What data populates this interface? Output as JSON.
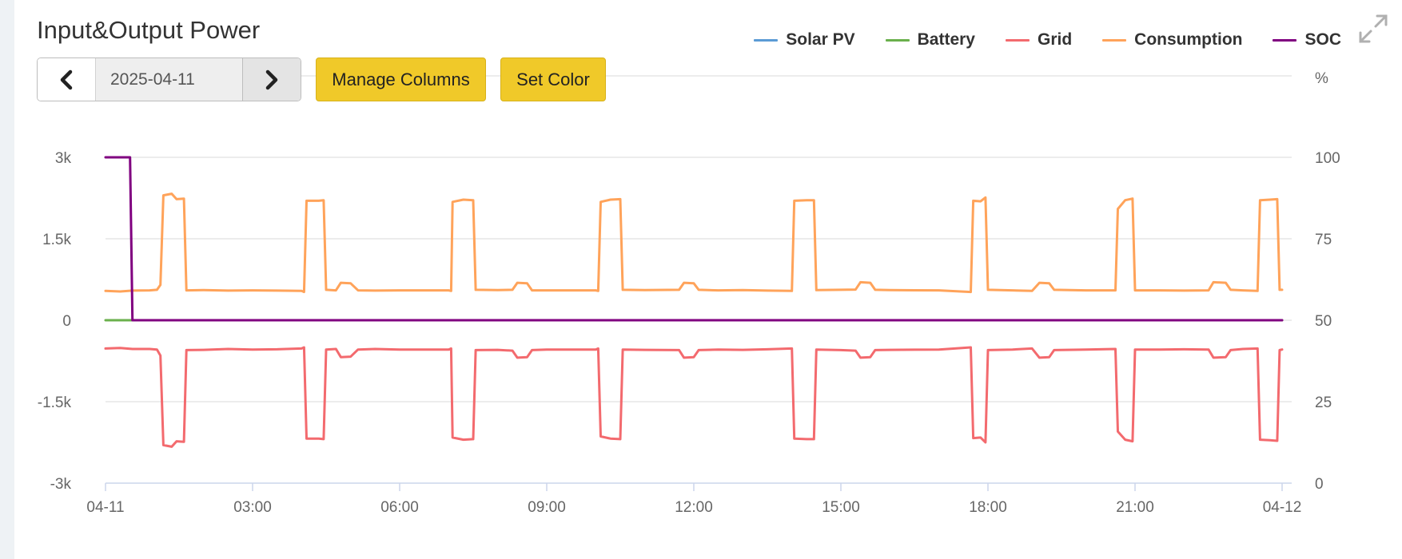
{
  "header": {
    "title": "Input&Output Power"
  },
  "toolbar": {
    "date_value": "2025-04-11",
    "manage_columns_label": "Manage Columns",
    "set_color_label": "Set Color"
  },
  "legend": [
    {
      "label": "Solar PV",
      "color": "#5b9bd5"
    },
    {
      "label": "Battery",
      "color": "#6ab04c"
    },
    {
      "label": "Grid",
      "color": "#f36a6e"
    },
    {
      "label": "Consumption",
      "color": "#ffa35a"
    },
    {
      "label": "SOC",
      "color": "#800080"
    }
  ],
  "chart_data": {
    "type": "line",
    "title": "Input&Output Power",
    "x_tick_labels": [
      "04-11",
      "03:00",
      "06:00",
      "09:00",
      "12:00",
      "15:00",
      "18:00",
      "21:00",
      "04-12"
    ],
    "x_range_hours": [
      0,
      24
    ],
    "y_left": {
      "ticks": [
        "3k",
        "1.5k",
        "0",
        "-1.5k",
        "-3k"
      ],
      "range": [
        -3000,
        3000
      ]
    },
    "y_right": {
      "label": "%",
      "ticks": [
        "100",
        "75",
        "50",
        "25",
        "0"
      ],
      "range": [
        0,
        100
      ]
    },
    "grid": true,
    "legend_position": "top-right",
    "series": [
      {
        "name": "Solar PV",
        "axis": "left",
        "points": []
      },
      {
        "name": "Battery",
        "axis": "left",
        "points": [
          [
            0.0,
            0
          ],
          [
            0.5,
            0
          ],
          [
            24.0,
            0
          ]
        ]
      },
      {
        "name": "Grid",
        "axis": "left",
        "points": [
          [
            0.0,
            -520
          ],
          [
            0.3,
            -510
          ],
          [
            0.55,
            -530
          ],
          [
            0.9,
            -530
          ],
          [
            1.05,
            -540
          ],
          [
            1.12,
            -650
          ],
          [
            1.18,
            -2300
          ],
          [
            1.35,
            -2330
          ],
          [
            1.45,
            -2230
          ],
          [
            1.6,
            -2240
          ],
          [
            1.65,
            -550
          ],
          [
            2.0,
            -545
          ],
          [
            2.5,
            -530
          ],
          [
            3.0,
            -540
          ],
          [
            3.5,
            -535
          ],
          [
            4.0,
            -520
          ],
          [
            4.05,
            -500
          ],
          [
            4.1,
            -2180
          ],
          [
            4.35,
            -2180
          ],
          [
            4.45,
            -2190
          ],
          [
            4.5,
            -540
          ],
          [
            4.7,
            -530
          ],
          [
            4.8,
            -680
          ],
          [
            5.0,
            -670
          ],
          [
            5.15,
            -540
          ],
          [
            5.5,
            -530
          ],
          [
            6.0,
            -540
          ],
          [
            7.0,
            -540
          ],
          [
            7.05,
            -520
          ],
          [
            7.08,
            -2160
          ],
          [
            7.3,
            -2200
          ],
          [
            7.5,
            -2190
          ],
          [
            7.55,
            -550
          ],
          [
            8.0,
            -545
          ],
          [
            8.3,
            -560
          ],
          [
            8.4,
            -690
          ],
          [
            8.6,
            -680
          ],
          [
            8.7,
            -550
          ],
          [
            9.0,
            -540
          ],
          [
            10.0,
            -540
          ],
          [
            10.05,
            -520
          ],
          [
            10.1,
            -2140
          ],
          [
            10.3,
            -2180
          ],
          [
            10.5,
            -2190
          ],
          [
            10.55,
            -540
          ],
          [
            11.0,
            -545
          ],
          [
            11.7,
            -550
          ],
          [
            11.8,
            -690
          ],
          [
            12.0,
            -680
          ],
          [
            12.1,
            -550
          ],
          [
            12.5,
            -540
          ],
          [
            13.0,
            -545
          ],
          [
            13.5,
            -535
          ],
          [
            14.0,
            -520
          ],
          [
            14.05,
            -2180
          ],
          [
            14.3,
            -2190
          ],
          [
            14.45,
            -2190
          ],
          [
            14.5,
            -540
          ],
          [
            15.0,
            -550
          ],
          [
            15.3,
            -560
          ],
          [
            15.4,
            -690
          ],
          [
            15.6,
            -680
          ],
          [
            15.7,
            -550
          ],
          [
            16.0,
            -545
          ],
          [
            17.0,
            -540
          ],
          [
            17.65,
            -500
          ],
          [
            17.7,
            -2170
          ],
          [
            17.85,
            -2160
          ],
          [
            17.95,
            -2250
          ],
          [
            18.0,
            -550
          ],
          [
            18.5,
            -540
          ],
          [
            18.9,
            -520
          ],
          [
            19.05,
            -690
          ],
          [
            19.25,
            -680
          ],
          [
            19.35,
            -550
          ],
          [
            20.0,
            -540
          ],
          [
            20.6,
            -530
          ],
          [
            20.65,
            -2050
          ],
          [
            20.8,
            -2200
          ],
          [
            20.95,
            -2230
          ],
          [
            21.0,
            -540
          ],
          [
            21.5,
            -540
          ],
          [
            22.0,
            -535
          ],
          [
            22.5,
            -540
          ],
          [
            22.6,
            -690
          ],
          [
            22.85,
            -680
          ],
          [
            22.95,
            -550
          ],
          [
            23.2,
            -530
          ],
          [
            23.5,
            -520
          ],
          [
            23.55,
            -2200
          ],
          [
            23.75,
            -2210
          ],
          [
            23.9,
            -2220
          ],
          [
            23.95,
            -550
          ],
          [
            24.0,
            -540
          ]
        ]
      },
      {
        "name": "Consumption",
        "axis": "left",
        "points": [
          [
            0.0,
            540
          ],
          [
            0.3,
            530
          ],
          [
            0.55,
            545
          ],
          [
            0.9,
            550
          ],
          [
            1.05,
            560
          ],
          [
            1.12,
            650
          ],
          [
            1.18,
            2300
          ],
          [
            1.35,
            2330
          ],
          [
            1.45,
            2230
          ],
          [
            1.6,
            2240
          ],
          [
            1.65,
            550
          ],
          [
            2.0,
            555
          ],
          [
            2.5,
            545
          ],
          [
            3.0,
            550
          ],
          [
            3.5,
            545
          ],
          [
            4.0,
            540
          ],
          [
            4.05,
            520
          ],
          [
            4.1,
            2200
          ],
          [
            4.35,
            2200
          ],
          [
            4.45,
            2210
          ],
          [
            4.5,
            560
          ],
          [
            4.7,
            550
          ],
          [
            4.8,
            690
          ],
          [
            5.0,
            680
          ],
          [
            5.15,
            550
          ],
          [
            5.5,
            545
          ],
          [
            6.0,
            550
          ],
          [
            7.0,
            550
          ],
          [
            7.05,
            540
          ],
          [
            7.08,
            2180
          ],
          [
            7.3,
            2220
          ],
          [
            7.5,
            2210
          ],
          [
            7.55,
            560
          ],
          [
            8.0,
            555
          ],
          [
            8.3,
            560
          ],
          [
            8.4,
            690
          ],
          [
            8.6,
            680
          ],
          [
            8.7,
            550
          ],
          [
            9.0,
            550
          ],
          [
            10.0,
            550
          ],
          [
            10.05,
            540
          ],
          [
            10.1,
            2180
          ],
          [
            10.3,
            2220
          ],
          [
            10.5,
            2230
          ],
          [
            10.55,
            560
          ],
          [
            11.0,
            555
          ],
          [
            11.7,
            560
          ],
          [
            11.8,
            690
          ],
          [
            12.0,
            680
          ],
          [
            12.1,
            560
          ],
          [
            12.5,
            550
          ],
          [
            13.0,
            555
          ],
          [
            13.5,
            545
          ],
          [
            14.0,
            540
          ],
          [
            14.05,
            2200
          ],
          [
            14.3,
            2210
          ],
          [
            14.45,
            2210
          ],
          [
            14.5,
            555
          ],
          [
            15.0,
            560
          ],
          [
            15.3,
            565
          ],
          [
            15.4,
            700
          ],
          [
            15.6,
            690
          ],
          [
            15.7,
            560
          ],
          [
            16.0,
            555
          ],
          [
            17.0,
            550
          ],
          [
            17.65,
            520
          ],
          [
            17.7,
            2200
          ],
          [
            17.85,
            2190
          ],
          [
            17.95,
            2260
          ],
          [
            18.0,
            560
          ],
          [
            18.5,
            550
          ],
          [
            18.9,
            540
          ],
          [
            19.05,
            690
          ],
          [
            19.25,
            680
          ],
          [
            19.35,
            560
          ],
          [
            20.0,
            550
          ],
          [
            20.6,
            550
          ],
          [
            20.65,
            2050
          ],
          [
            20.8,
            2210
          ],
          [
            20.95,
            2240
          ],
          [
            21.0,
            550
          ],
          [
            21.5,
            550
          ],
          [
            22.0,
            545
          ],
          [
            22.5,
            550
          ],
          [
            22.6,
            700
          ],
          [
            22.85,
            690
          ],
          [
            22.95,
            560
          ],
          [
            23.2,
            550
          ],
          [
            23.5,
            540
          ],
          [
            23.55,
            2210
          ],
          [
            23.75,
            2220
          ],
          [
            23.9,
            2230
          ],
          [
            23.95,
            560
          ],
          [
            24.0,
            560
          ]
        ]
      },
      {
        "name": "SOC",
        "axis": "right",
        "points": [
          [
            0.0,
            100
          ],
          [
            0.5,
            100
          ],
          [
            0.55,
            50
          ],
          [
            24.0,
            50
          ]
        ]
      }
    ]
  }
}
